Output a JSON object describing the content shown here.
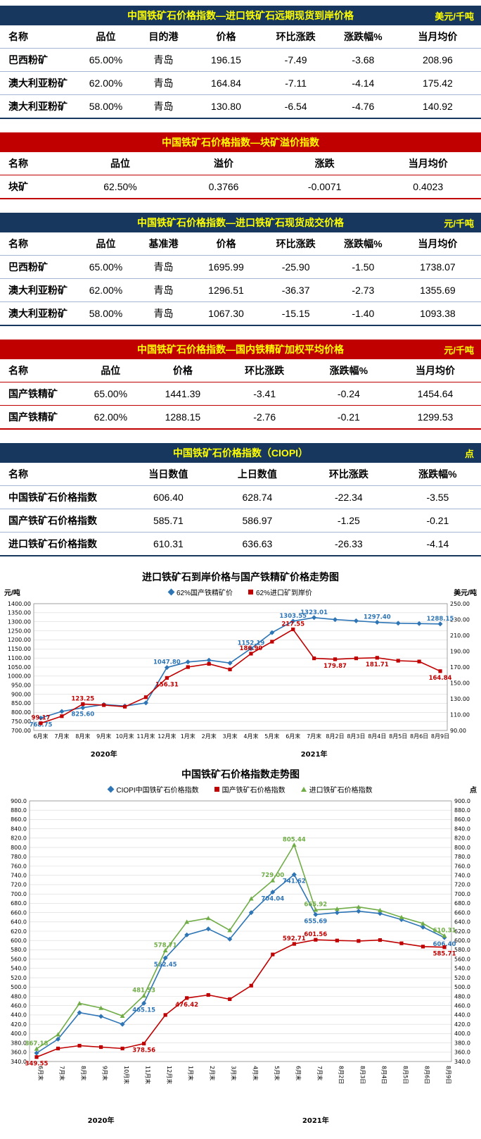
{
  "tables": [
    {
      "theme": "navy",
      "title": "中国铁矿石价格指数—进口铁矿石远期现货到岸价格",
      "unit": "美元/千吨",
      "columns": [
        "名称",
        "品位",
        "目的港",
        "价格",
        "环比涨跌",
        "涨跌幅%",
        "当月均价"
      ],
      "widths": [
        16,
        12,
        12,
        14,
        15,
        13,
        18
      ],
      "rows": [
        [
          "巴西粉矿",
          "65.00%",
          "青岛",
          "196.15",
          "-7.49",
          "-3.68",
          "208.96"
        ],
        [
          "澳大利亚粉矿",
          "62.00%",
          "青岛",
          "164.84",
          "-7.11",
          "-4.14",
          "175.42"
        ],
        [
          "澳大利亚粉矿",
          "58.00%",
          "青岛",
          "130.80",
          "-6.54",
          "-4.76",
          "140.92"
        ]
      ]
    },
    {
      "theme": "red",
      "title": "中国铁矿石价格指数—块矿溢价指数",
      "unit": "",
      "columns": [
        "名称",
        "品位",
        "溢价",
        "涨跌",
        "当月均价"
      ],
      "widths": [
        14,
        22,
        21,
        21,
        22
      ],
      "rows": [
        [
          "块矿",
          "62.50%",
          "0.3766",
          "-0.0071",
          "0.4023"
        ]
      ]
    },
    {
      "theme": "navy",
      "title": "中国铁矿石价格指数—进口铁矿石现货成交价格",
      "unit": "元/千吨",
      "columns": [
        "名称",
        "品位",
        "基准港",
        "价格",
        "环比涨跌",
        "涨跌幅%",
        "当月均价"
      ],
      "widths": [
        16,
        12,
        12,
        14,
        15,
        13,
        18
      ],
      "rows": [
        [
          "巴西粉矿",
          "65.00%",
          "青岛",
          "1695.99",
          "-25.90",
          "-1.50",
          "1738.07"
        ],
        [
          "澳大利亚粉矿",
          "62.00%",
          "青岛",
          "1296.51",
          "-36.37",
          "-2.73",
          "1355.69"
        ],
        [
          "澳大利亚粉矿",
          "58.00%",
          "青岛",
          "1067.30",
          "-15.15",
          "-1.40",
          "1093.38"
        ]
      ]
    },
    {
      "theme": "red",
      "title": "中国铁矿石价格指数—国内铁精矿加权平均价格",
      "unit": "元/千吨",
      "columns": [
        "名称",
        "品位",
        "价格",
        "环比涨跌",
        "涨跌幅%",
        "当月均价"
      ],
      "widths": [
        16,
        14,
        16,
        18,
        17,
        19
      ],
      "rows": [
        [
          "国产铁精矿",
          "65.00%",
          "1441.39",
          "-3.41",
          "-0.24",
          "1454.64"
        ],
        [
          "国产铁精矿",
          "62.00%",
          "1288.15",
          "-2.76",
          "-0.21",
          "1299.53"
        ]
      ]
    },
    {
      "theme": "navy",
      "title": "中国铁矿石价格指数（CIOPI）",
      "unit": "点",
      "columns": [
        "名称",
        "当日数值",
        "上日数值",
        "环比涨跌",
        "涨跌幅%"
      ],
      "widths": [
        26,
        18,
        19,
        19,
        18
      ],
      "rows": [
        [
          "中国铁矿石价格指数",
          "606.40",
          "628.74",
          "-22.34",
          "-3.55"
        ],
        [
          "国产铁矿石价格指数",
          "585.71",
          "586.97",
          "-1.25",
          "-0.21"
        ],
        [
          "进口铁矿石价格指数",
          "610.31",
          "636.63",
          "-26.33",
          "-4.14"
        ]
      ]
    }
  ],
  "chart_data": [
    {
      "type": "line",
      "title": "进口铁矿石到岸价格与国产铁精矿价格走势图",
      "left_axis": {
        "label": "元/吨",
        "min": 700,
        "max": 1400,
        "step": 50,
        "decimals": 2
      },
      "right_axis": {
        "label": "美元/吨",
        "min": 90,
        "max": 250,
        "step": 20,
        "decimals": 2
      },
      "categories": [
        "6月末",
        "7月末",
        "8月末",
        "9月末",
        "10月末",
        "11月末",
        "12月末",
        "1月末",
        "2月末",
        "3月末",
        "4月末",
        "5月末",
        "6月末",
        "7月末",
        "8月2日",
        "8月3日",
        "8月4日",
        "8月5日",
        "8月6日",
        "8月9日"
      ],
      "year_groups": [
        {
          "label": "2020年",
          "from": 0,
          "to": 6
        },
        {
          "label": "2021年",
          "from": 7,
          "to": 19
        }
      ],
      "vertical_xlabels": false,
      "series": [
        {
          "name": "62%国产铁精矿价",
          "color": "#2E75B6",
          "marker": "diamond",
          "axis": "left",
          "values": [
            768.75,
            805,
            825.6,
            843,
            835,
            852,
            1047.8,
            1078,
            1088,
            1072,
            1152.19,
            1240,
            1303.55,
            1323.01,
            1312,
            1305,
            1297.4,
            1292,
            1290,
            1288.15
          ],
          "labels": [
            {
              "i": 0,
              "below": true
            },
            {
              "i": 2,
              "below": true
            },
            {
              "i": 6
            },
            {
              "i": 10
            },
            {
              "i": 12
            },
            {
              "i": 13
            },
            {
              "i": 16
            },
            {
              "i": 19
            }
          ]
        },
        {
          "name": "62%进口矿到岸价",
          "color": "#C00000",
          "marker": "square",
          "axis": "right",
          "values": [
            99.17,
            108,
            123.25,
            122,
            120,
            132,
            156.31,
            170,
            174,
            167,
            186.9,
            202,
            217.55,
            181,
            179.87,
            181,
            181.71,
            178,
            177,
            164.84
          ],
          "labels": [
            {
              "i": 0
            },
            {
              "i": 2
            },
            {
              "i": 6,
              "below": true
            },
            {
              "i": 10
            },
            {
              "i": 12
            },
            {
              "i": 14,
              "below": true
            },
            {
              "i": 16,
              "below": true
            },
            {
              "i": 19,
              "below": true
            }
          ]
        }
      ]
    },
    {
      "type": "line",
      "title": "中国铁矿石价格指数走势图",
      "unit": "点",
      "left_axis": {
        "label": "",
        "min": 340,
        "max": 900,
        "step": 20,
        "decimals": 1
      },
      "right_axis": {
        "label": "",
        "min": 340,
        "max": 900,
        "step": 20,
        "decimals": 1
      },
      "categories": [
        "6月末",
        "7月末",
        "8月末",
        "9月末",
        "10月末",
        "11月末",
        "12月末",
        "1月末",
        "2月末",
        "3月末",
        "4月末",
        "5月末",
        "6月末",
        "7月末",
        "8月2日",
        "8月3日",
        "8月4日",
        "8月5日",
        "8月6日",
        "8月9日"
      ],
      "year_groups": [
        {
          "label": "2020年",
          "from": 0,
          "to": 6
        },
        {
          "label": "2021年",
          "from": 7,
          "to": 19
        }
      ],
      "vertical_xlabels": true,
      "series": [
        {
          "name": "CIOPI中国铁矿石价格指数",
          "color": "#2E75B6",
          "marker": "diamond",
          "axis": "left",
          "values": [
            358.1,
            388,
            445,
            437,
            420,
            465.15,
            562.45,
            612,
            625,
            603,
            660,
            704.04,
            741.62,
            655.69,
            660,
            663,
            658,
            645,
            628.74,
            606.4
          ],
          "labels": [
            {
              "i": 5,
              "below": true
            },
            {
              "i": 6,
              "below": true
            },
            {
              "i": 11,
              "below": true
            },
            {
              "i": 12,
              "below": true
            },
            {
              "i": 13,
              "below": true
            },
            {
              "i": 19,
              "below": true
            }
          ]
        },
        {
          "name": "国产铁矿石价格指数",
          "color": "#C00000",
          "marker": "square",
          "axis": "left",
          "values": [
            349.55,
            368,
            374,
            371,
            368,
            378.56,
            440,
            476.42,
            483,
            474,
            503,
            570,
            592.71,
            601.56,
            600,
            599,
            601,
            594,
            586.97,
            585.71
          ],
          "labels": [
            {
              "i": 0,
              "below": true
            },
            {
              "i": 5,
              "below": true
            },
            {
              "i": 7,
              "below": true
            },
            {
              "i": 12
            },
            {
              "i": 13
            },
            {
              "i": 19,
              "below": true
            }
          ]
        },
        {
          "name": "进口铁矿石价格指数",
          "color": "#70AD47",
          "marker": "triangle",
          "axis": "left",
          "values": [
            367.18,
            398,
            465,
            455,
            438,
            481.53,
            578.71,
            640,
            648,
            622,
            690,
            729.0,
            805.44,
            665.92,
            668,
            672,
            665,
            650,
            636.63,
            610.31
          ],
          "labels": [
            {
              "i": 0
            },
            {
              "i": 5
            },
            {
              "i": 6
            },
            {
              "i": 11
            },
            {
              "i": 12
            },
            {
              "i": 13
            },
            {
              "i": 19
            }
          ]
        }
      ]
    }
  ]
}
